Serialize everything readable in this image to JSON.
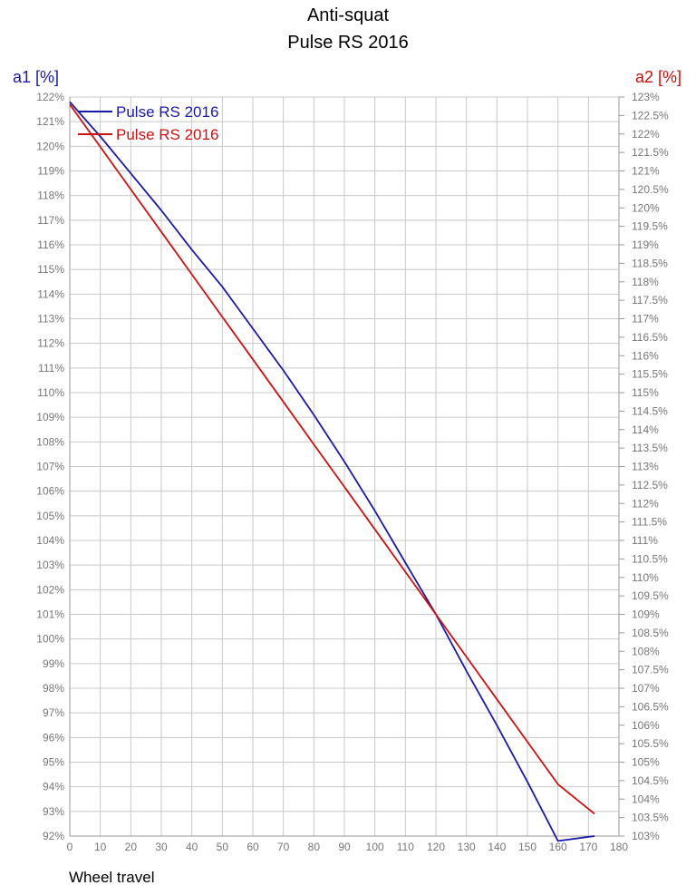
{
  "chart_data": {
    "type": "line",
    "title": "Anti-squat",
    "subtitle": "Pulse RS 2016",
    "xlabel": "Wheel travel",
    "ylabel": "a1 [%]",
    "y2label": "a2 [%]",
    "xlim": [
      0,
      180
    ],
    "ylim": [
      92,
      122
    ],
    "y2lim": [
      103,
      123
    ],
    "grid": true,
    "legend_position": "top-left",
    "x_ticks": [
      "0",
      "10",
      "20",
      "30",
      "40",
      "50",
      "60",
      "70",
      "80",
      "90",
      "100",
      "110",
      "120",
      "130",
      "140",
      "150",
      "160",
      "170",
      "180"
    ],
    "y_ticks": [
      "92%",
      "93%",
      "94%",
      "95%",
      "96%",
      "97%",
      "98%",
      "99%",
      "100%",
      "101%",
      "102%",
      "103%",
      "104%",
      "105%",
      "106%",
      "107%",
      "108%",
      "109%",
      "110%",
      "111%",
      "112%",
      "113%",
      "114%",
      "115%",
      "116%",
      "117%",
      "118%",
      "119%",
      "120%",
      "121%",
      "122%"
    ],
    "y2_ticks": [
      "103%",
      "103.5%",
      "104%",
      "104.5%",
      "105%",
      "105.5%",
      "106%",
      "106.5%",
      "107%",
      "107.5%",
      "108%",
      "108.5%",
      "109%",
      "109.5%",
      "110%",
      "110.5%",
      "111%",
      "111.5%",
      "112%",
      "112.5%",
      "113%",
      "113.5%",
      "114%",
      "114.5%",
      "115%",
      "115.5%",
      "116%",
      "116.5%",
      "117%",
      "117.5%",
      "118%",
      "118.5%",
      "119%",
      "119.5%",
      "120%",
      "120.5%",
      "121%",
      "121.5%",
      "122%",
      "122.5%",
      "123%"
    ],
    "series": [
      {
        "name": "Pulse RS 2016",
        "axis": "left",
        "color": "#1a1aa6",
        "x": [
          0,
          10,
          20,
          30,
          40,
          50,
          60,
          70,
          80,
          90,
          100,
          110,
          120,
          130,
          140,
          150,
          160,
          172
        ],
        "y": [
          121.8,
          120.4,
          118.9,
          117.4,
          115.8,
          114.3,
          112.6,
          110.9,
          109.1,
          107.2,
          105.2,
          103.1,
          101.0,
          98.7,
          96.5,
          94.2,
          91.8,
          92.0
        ]
      },
      {
        "name": "Pulse RS 2016",
        "axis": "right",
        "color": "#cc1111",
        "x": [
          0,
          10,
          20,
          30,
          40,
          50,
          60,
          70,
          80,
          90,
          100,
          110,
          120,
          130,
          140,
          150,
          160,
          172
        ],
        "y": [
          122.8,
          121.65,
          120.5,
          119.35,
          118.2,
          117.05,
          115.9,
          114.75,
          113.6,
          112.45,
          111.3,
          110.15,
          109.0,
          107.85,
          106.7,
          105.55,
          104.4,
          103.6
        ]
      }
    ]
  }
}
